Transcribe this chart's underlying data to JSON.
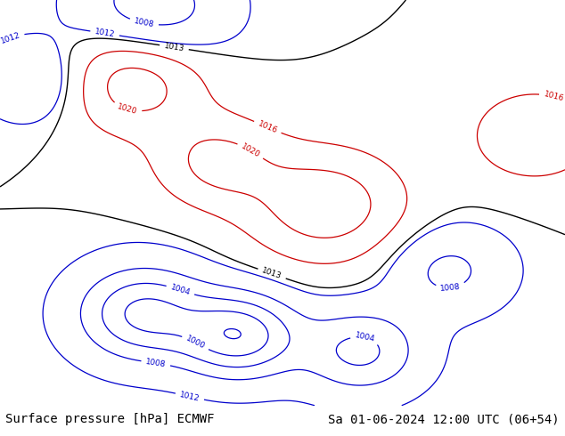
{
  "title_left": "Surface pressure [hPa] ECMWF",
  "title_right": "Sa 01-06-2024 12:00 UTC (06+54)",
  "title_fontsize": 10,
  "title_color": "#000000",
  "background_color": "#ffffff",
  "fig_width": 6.34,
  "fig_height": 4.9,
  "dpi": 100,
  "ocean_color": "#a0c8e8",
  "land_color_low": "#c8e0a0",
  "land_color_high": "#c8a870",
  "contour_color_low": "#0000cc",
  "contour_color_mid": "#000000",
  "contour_color_high": "#cc0000",
  "label_fontsize": 6.5,
  "linewidth": 0.9,
  "lon_min": 25,
  "lon_max": 155,
  "lat_min": 5,
  "lat_max": 80,
  "pressure_base": 1013.0,
  "contour_interval": 4
}
